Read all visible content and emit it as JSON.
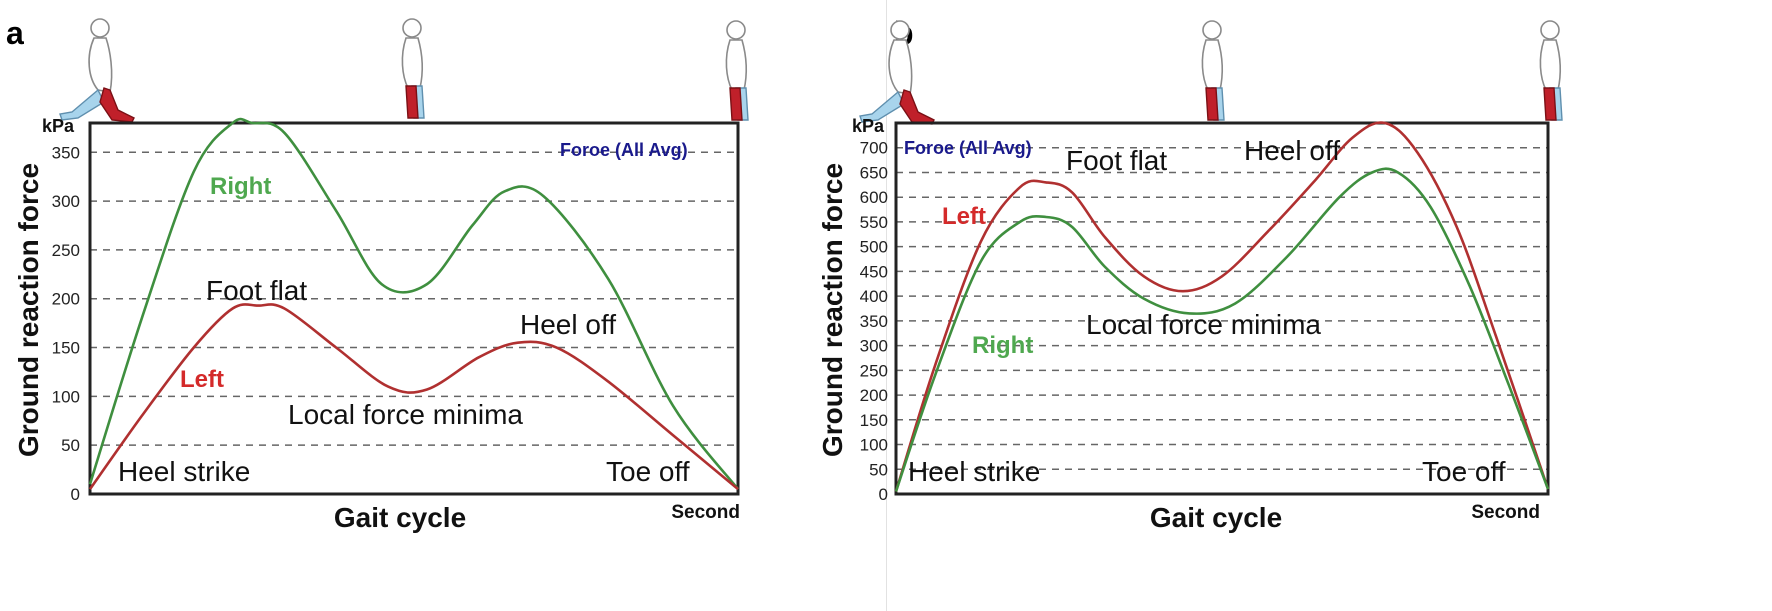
{
  "colors": {
    "left": "#b03030",
    "right": "#3f8f3f",
    "left_label": "#d42a2a",
    "right_label": "#4fa84f",
    "legend": "#1a1a8c",
    "leg_light": "#a8d4ec",
    "leg_dark": "#c0202a"
  },
  "icons": [
    "walking-figure-icon",
    "standing-figure-icon"
  ],
  "chart_data": [
    {
      "type": "line",
      "panel_label": "a",
      "y_unit": "kPa",
      "ylabel": "Ground reaction force",
      "xlabel": "Gait cycle",
      "x_unit": "Second",
      "legend": "Foroe (All Avg)",
      "legend_position": "top-right",
      "ylim": [
        0,
        380
      ],
      "xlim": [
        0,
        1
      ],
      "yticks": [
        "0",
        "50",
        "100",
        "150",
        "200",
        "250",
        "300",
        "350"
      ],
      "grid": true,
      "series": [
        {
          "name": "Right",
          "x": [
            0,
            0.08,
            0.16,
            0.22,
            0.25,
            0.3,
            0.38,
            0.45,
            0.52,
            0.59,
            0.64,
            0.7,
            0.8,
            0.9,
            1.0
          ],
          "y": [
            10,
            180,
            330,
            380,
            380,
            370,
            290,
            215,
            215,
            275,
            310,
            305,
            220,
            90,
            5
          ]
        },
        {
          "name": "Left",
          "x": [
            0,
            0.08,
            0.16,
            0.22,
            0.26,
            0.3,
            0.38,
            0.46,
            0.52,
            0.6,
            0.66,
            0.72,
            0.8,
            0.9,
            1.0
          ],
          "y": [
            5,
            80,
            150,
            190,
            193,
            190,
            150,
            110,
            107,
            140,
            155,
            150,
            115,
            60,
            5
          ]
        }
      ],
      "annotations": [
        "Foot flat",
        "Heel off",
        "Local force minima",
        "Heel strike",
        "Toe off"
      ]
    },
    {
      "type": "line",
      "panel_label": "b",
      "y_unit": "kPa",
      "ylabel": "Ground reaction force",
      "xlabel": "Gait cycle",
      "x_unit": "Second",
      "legend": "Foroe (All Avg)",
      "legend_position": "top-left",
      "ylim": [
        0,
        750
      ],
      "xlim": [
        0,
        1
      ],
      "yticks": [
        "0",
        "50",
        "100",
        "150",
        "200",
        "250",
        "300",
        "350",
        "400",
        "450",
        "500",
        "550",
        "600",
        "650",
        "700"
      ],
      "grid": true,
      "series": [
        {
          "name": "Left",
          "x": [
            0,
            0.06,
            0.13,
            0.19,
            0.23,
            0.27,
            0.32,
            0.38,
            0.44,
            0.5,
            0.57,
            0.64,
            0.7,
            0.75,
            0.8,
            0.86,
            0.92,
            1.0
          ],
          "y": [
            5,
            260,
            510,
            620,
            630,
            610,
            520,
            440,
            410,
            440,
            530,
            630,
            720,
            750,
            690,
            540,
            320,
            10
          ]
        },
        {
          "name": "Right",
          "x": [
            0,
            0.06,
            0.13,
            0.19,
            0.23,
            0.27,
            0.32,
            0.38,
            0.45,
            0.52,
            0.6,
            0.68,
            0.73,
            0.77,
            0.82,
            0.88,
            0.94,
            1.0
          ],
          "y": [
            5,
            240,
            470,
            550,
            560,
            540,
            460,
            395,
            365,
            385,
            480,
            600,
            650,
            650,
            580,
            420,
            220,
            10
          ]
        }
      ],
      "annotations": [
        "Foot flat",
        "Heel off",
        "Local force minima",
        "Heel strike",
        "Toe off"
      ]
    }
  ]
}
